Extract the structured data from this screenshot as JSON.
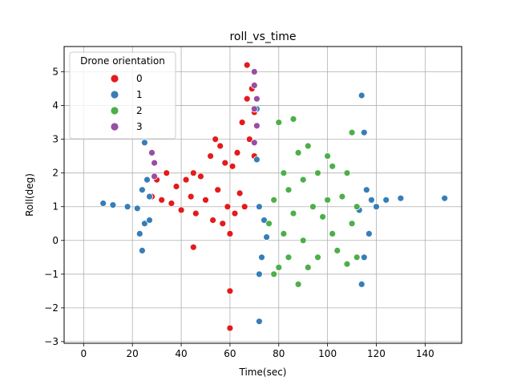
{
  "chart_data": {
    "type": "scatter",
    "title": "roll_vs_time",
    "xlabel": "Time(sec)",
    "ylabel": "Roll(deg)",
    "xlim": [
      -8,
      155
    ],
    "ylim": [
      -3.05,
      5.75
    ],
    "xticks": [
      0,
      20,
      40,
      60,
      80,
      100,
      120,
      140
    ],
    "yticks": [
      -3,
      -2,
      -1,
      0,
      1,
      2,
      3,
      4,
      5
    ],
    "grid": true,
    "legend": {
      "title": "Drone orientation",
      "placement": "top-left"
    },
    "series": [
      {
        "name": "0",
        "color": "#e41a1c",
        "points": [
          [
            28,
            1.3
          ],
          [
            30,
            1.8
          ],
          [
            32,
            1.2
          ],
          [
            34,
            2.0
          ],
          [
            36,
            1.1
          ],
          [
            38,
            1.6
          ],
          [
            40,
            0.9
          ],
          [
            42,
            1.8
          ],
          [
            44,
            1.3
          ],
          [
            45,
            -0.2
          ],
          [
            45,
            2.0
          ],
          [
            46,
            0.8
          ],
          [
            48,
            1.9
          ],
          [
            50,
            1.2
          ],
          [
            52,
            2.5
          ],
          [
            53,
            0.6
          ],
          [
            54,
            3.0
          ],
          [
            55,
            1.5
          ],
          [
            56,
            2.8
          ],
          [
            57,
            0.5
          ],
          [
            58,
            2.3
          ],
          [
            59,
            1.0
          ],
          [
            60,
            -2.6
          ],
          [
            60,
            -1.5
          ],
          [
            60,
            0.2
          ],
          [
            61,
            2.2
          ],
          [
            62,
            0.8
          ],
          [
            63,
            2.6
          ],
          [
            64,
            1.4
          ],
          [
            65,
            3.5
          ],
          [
            66,
            1.0
          ],
          [
            67,
            5.2
          ],
          [
            67,
            4.2
          ],
          [
            68,
            3.0
          ],
          [
            69,
            4.5
          ],
          [
            70,
            2.5
          ],
          [
            70,
            3.8
          ]
        ]
      },
      {
        "name": "1",
        "color": "#377eb8",
        "points": [
          [
            8,
            1.1
          ],
          [
            12,
            1.05
          ],
          [
            18,
            1.0
          ],
          [
            22,
            0.95
          ],
          [
            23,
            0.2
          ],
          [
            24,
            -0.3
          ],
          [
            24,
            1.5
          ],
          [
            25,
            2.9
          ],
          [
            25,
            0.5
          ],
          [
            26,
            1.8
          ],
          [
            27,
            0.6
          ],
          [
            27,
            1.3
          ],
          [
            71,
            3.9
          ],
          [
            71,
            2.4
          ],
          [
            72,
            -2.4
          ],
          [
            72,
            -1.0
          ],
          [
            72,
            1.0
          ],
          [
            73,
            -0.5
          ],
          [
            74,
            0.6
          ],
          [
            75,
            0.1
          ],
          [
            113,
            0.9
          ],
          [
            114,
            4.3
          ],
          [
            114,
            -1.3
          ],
          [
            115,
            -0.5
          ],
          [
            115,
            3.2
          ],
          [
            116,
            1.5
          ],
          [
            117,
            0.2
          ],
          [
            118,
            1.2
          ],
          [
            120,
            1.0
          ],
          [
            124,
            1.2
          ],
          [
            130,
            1.25
          ],
          [
            148,
            1.25
          ]
        ]
      },
      {
        "name": "2",
        "color": "#4daf4a",
        "points": [
          [
            76,
            0.5
          ],
          [
            78,
            -1.0
          ],
          [
            78,
            1.2
          ],
          [
            80,
            3.5
          ],
          [
            80,
            -0.8
          ],
          [
            82,
            2.0
          ],
          [
            82,
            0.2
          ],
          [
            84,
            1.5
          ],
          [
            84,
            -0.5
          ],
          [
            86,
            3.6
          ],
          [
            86,
            0.8
          ],
          [
            88,
            -1.3
          ],
          [
            88,
            2.6
          ],
          [
            90,
            1.8
          ],
          [
            90,
            0.0
          ],
          [
            92,
            -0.8
          ],
          [
            92,
            2.8
          ],
          [
            94,
            1.0
          ],
          [
            96,
            -0.5
          ],
          [
            96,
            2.0
          ],
          [
            98,
            0.7
          ],
          [
            100,
            2.5
          ],
          [
            100,
            1.2
          ],
          [
            102,
            0.2
          ],
          [
            102,
            2.2
          ],
          [
            104,
            -0.3
          ],
          [
            106,
            1.3
          ],
          [
            108,
            -0.7
          ],
          [
            108,
            2.0
          ],
          [
            110,
            3.2
          ],
          [
            110,
            0.5
          ],
          [
            112,
            1.0
          ],
          [
            112,
            -0.5
          ]
        ]
      },
      {
        "name": "3",
        "color": "#984ea3",
        "points": [
          [
            28,
            2.6
          ],
          [
            29,
            2.3
          ],
          [
            29,
            1.9
          ],
          [
            70,
            5.0
          ],
          [
            70,
            4.6
          ],
          [
            70,
            3.9
          ],
          [
            71,
            4.2
          ],
          [
            71,
            3.4
          ],
          [
            70,
            2.9
          ]
        ]
      }
    ]
  }
}
